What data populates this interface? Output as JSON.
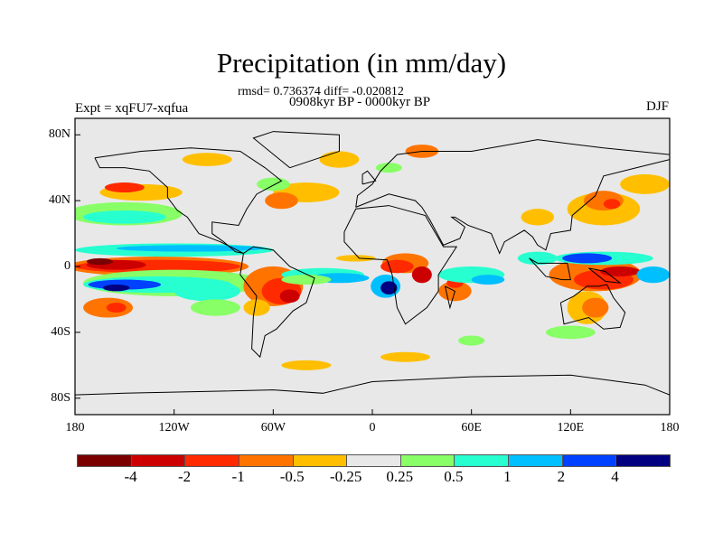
{
  "title": "Precipitation (in mm/day)",
  "stats": "rmsd= 0.736374 diff= -0.020812",
  "period": "0908kyr BP - 0000kyr BP",
  "expt": "Expt = xqFU7-xqfua",
  "season": "DJF",
  "lat_labels": [
    "80N",
    "40N",
    "0",
    "40S",
    "80S"
  ],
  "lat_values": [
    80,
    40,
    0,
    -40,
    -80
  ],
  "lon_labels": [
    "180",
    "120W",
    "60W",
    "0",
    "60E",
    "120E",
    "180"
  ],
  "lon_values": [
    -180,
    -120,
    -60,
    0,
    60,
    120,
    180
  ],
  "colorbar": {
    "colors": [
      "#7a0000",
      "#cc0000",
      "#ff2a00",
      "#ff7400",
      "#ffbf00",
      "#e8e8e8",
      "#88ff66",
      "#28ffd0",
      "#00bfff",
      "#0040ff",
      "#000080"
    ],
    "labels": [
      "-4",
      "-2",
      "-1",
      "-0.5",
      "-0.25",
      "0.25",
      "0.5",
      "1",
      "2",
      "4"
    ]
  },
  "background_color": "#e8e8e8"
}
